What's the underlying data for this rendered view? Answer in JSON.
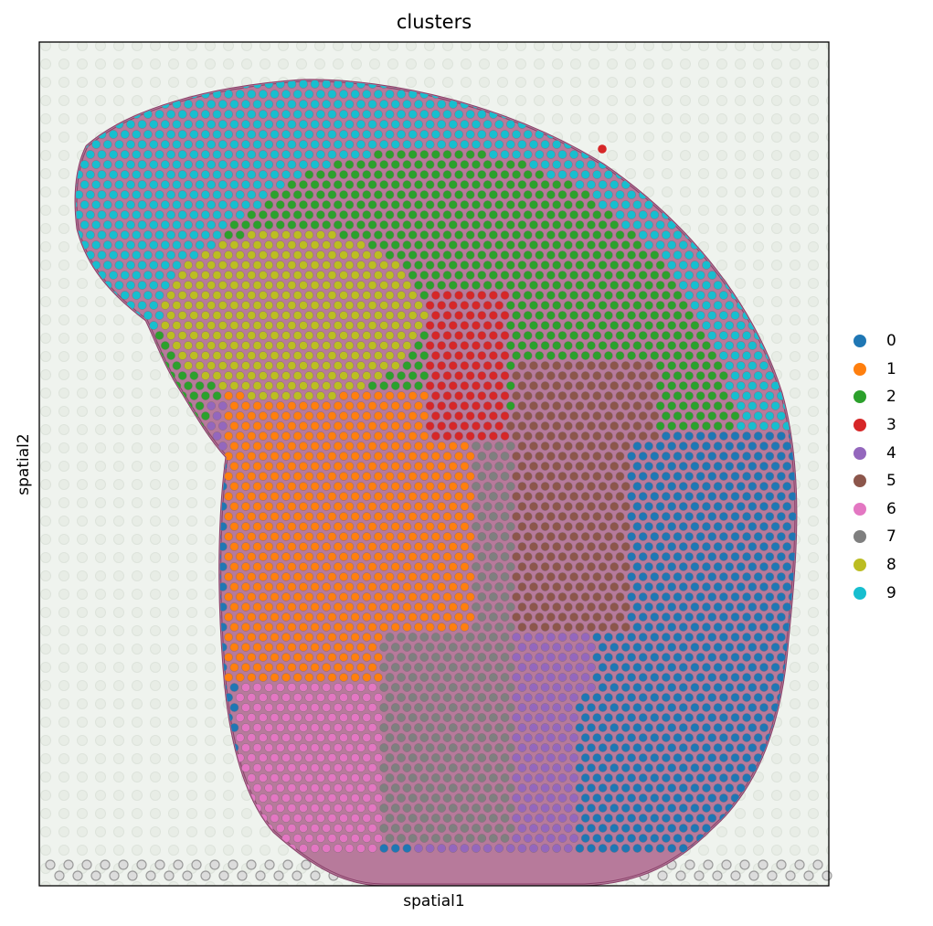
{
  "chart_data": {
    "type": "scatter",
    "title": "clusters",
    "xlabel": "spatial1",
    "ylabel": "spatial2",
    "legend_position": "right",
    "grid": false,
    "legend": [
      {
        "label": "0",
        "color": "#1f77b4"
      },
      {
        "label": "1",
        "color": "#ff7f0e"
      },
      {
        "label": "2",
        "color": "#2ca02c"
      },
      {
        "label": "3",
        "color": "#d62728"
      },
      {
        "label": "4",
        "color": "#9467bd"
      },
      {
        "label": "5",
        "color": "#8c564b"
      },
      {
        "label": "6",
        "color": "#e377c2"
      },
      {
        "label": "7",
        "color": "#7f7f7f"
      },
      {
        "label": "8",
        "color": "#bcbd22"
      },
      {
        "label": "9",
        "color": "#17becf"
      }
    ]
  }
}
